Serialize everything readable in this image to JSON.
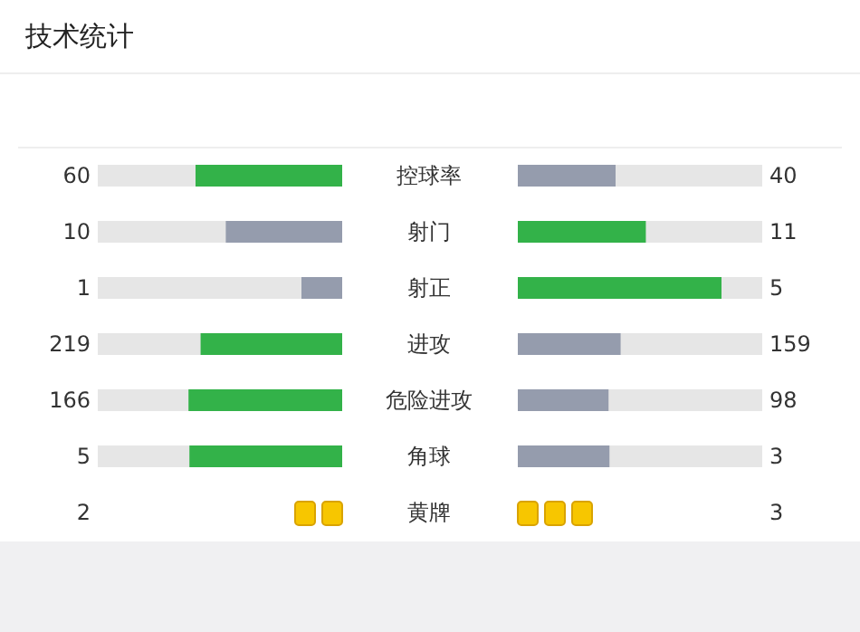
{
  "chart_data": [
    {
      "type": "other",
      "title": "技术统计",
      "categories": [
        "控球率",
        "射门",
        "射正",
        "进攻",
        "危险进攻",
        "角球"
      ],
      "data_labels": true,
      "series": [
        {
          "values": [
            60,
            10,
            1,
            219,
            166,
            5
          ],
          "colors": [
            "#33b249",
            "#959cad",
            "#959cad",
            "#33b249",
            "#33b249",
            "#33b249"
          ]
        },
        {
          "values": [
            40,
            11,
            5,
            159,
            98,
            3
          ],
          "colors": [
            "#959cad",
            "#33b249",
            "#33b249",
            "#959cad",
            "#959cad",
            "#959cad"
          ]
        }
      ]
    },
    {
      "type": "other",
      "categories": [
        "黄牌"
      ],
      "data_labels": true,
      "series": [
        {
          "values": [
            2
          ],
          "colors": [
            "#f7c600"
          ]
        },
        {
          "values": [
            3
          ],
          "colors": [
            "#f7c600"
          ]
        }
      ]
    }
  ]
}
